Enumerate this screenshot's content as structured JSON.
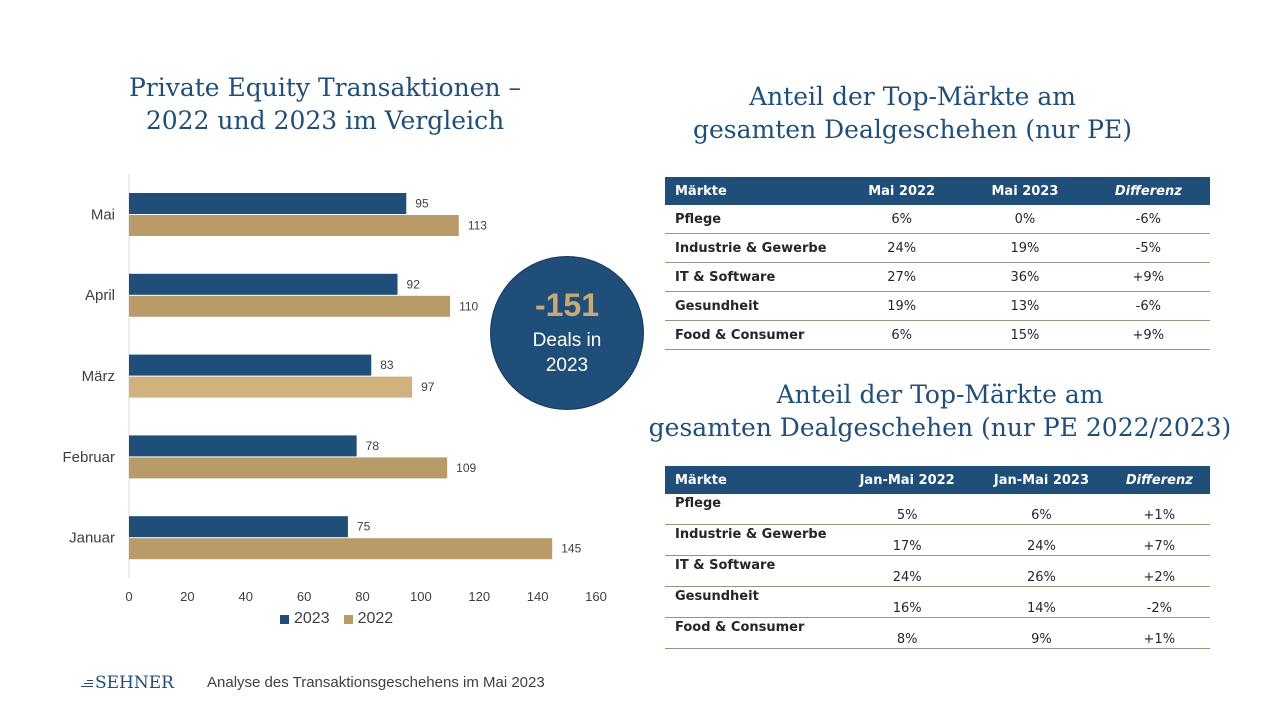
{
  "chart_title_line1": "Private Equity Transaktionen –",
  "chart_title_line2": "2022 und 2023 im Vergleich",
  "chart_data": {
    "type": "bar",
    "orientation": "horizontal",
    "categories": [
      "Mai",
      "April",
      "März",
      "Februar",
      "Januar"
    ],
    "series": [
      {
        "name": "2023",
        "values": [
          95,
          92,
          83,
          78,
          75
        ]
      },
      {
        "name": "2022",
        "values": [
          113,
          110,
          97,
          109,
          145
        ]
      }
    ],
    "xlim": [
      0,
      160
    ],
    "xticks": [
      0,
      20,
      40,
      60,
      80,
      100,
      120,
      140,
      160
    ],
    "colors": {
      "2023": "#1f4e79",
      "2022": "#b89b68",
      "2022_highlight": "#cfb27e"
    },
    "highlight": {
      "category": "März",
      "series": "2022"
    },
    "grid": false,
    "legend_position": "bottom"
  },
  "legend": {
    "label_2023": "2023",
    "label_2022": "2022"
  },
  "badge": {
    "value": "-151",
    "line1": "Deals in",
    "line2": "2023"
  },
  "table1": {
    "title_line1": "Anteil der Top-Märkte am",
    "title_line2": "gesamten Dealgeschehen (nur PE)",
    "headers": [
      "Märkte",
      "Mai 2022",
      "Mai 2023",
      "Differenz"
    ],
    "rows": [
      [
        "Pflege",
        "6%",
        "0%",
        "-6%"
      ],
      [
        "Industrie & Gewerbe",
        "24%",
        "19%",
        "-5%"
      ],
      [
        "IT & Software",
        "27%",
        "36%",
        "+9%"
      ],
      [
        "Gesundheit",
        "19%",
        "13%",
        "-6%"
      ],
      [
        "Food & Consumer",
        "6%",
        "15%",
        "+9%"
      ]
    ]
  },
  "table2": {
    "title_line1": "Anteil der Top-Märkte am",
    "title_line2": "gesamten Dealgeschehen (nur PE 2022/2023)",
    "headers": [
      "Märkte",
      "Jan-Mai 2022",
      "Jan-Mai 2023",
      "Differenz"
    ],
    "rows": [
      [
        "Pflege",
        "5%",
        "6%",
        "+1%"
      ],
      [
        "Industrie & Gewerbe",
        "17%",
        "24%",
        "+7%"
      ],
      [
        "IT & Software",
        "24%",
        "26%",
        "+2%"
      ],
      [
        "Gesundheit",
        "16%",
        "14%",
        "-2%"
      ],
      [
        "Food & Consumer",
        "8%",
        "9%",
        "+1%"
      ]
    ]
  },
  "colors": {
    "navy": "#1f4e79",
    "gold": "#b89b68"
  },
  "logo": {
    "text": "SEHNER"
  },
  "footer": {
    "text": "Analyse des Transaktionsgeschehens im Mai 2023"
  }
}
